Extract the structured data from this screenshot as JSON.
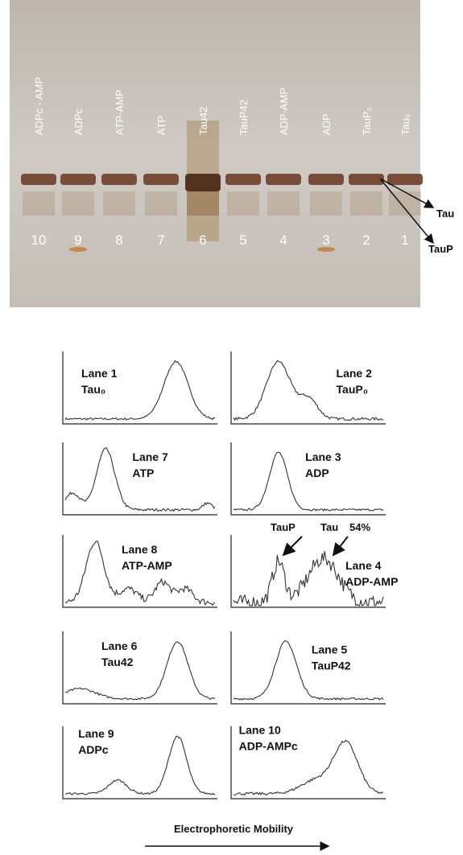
{
  "gel": {
    "lane_labels": [
      "ADPc - AMP",
      "ADPc",
      "ATP-AMP",
      "ATP",
      "Tau42",
      "TauP42",
      "ADP-AMP",
      "ADP",
      "TauP₀",
      "Tau₀"
    ],
    "lane_numbers": [
      "10",
      "9",
      "8",
      "7",
      "6",
      "5",
      "4",
      "3",
      "2",
      "1"
    ],
    "band_labels": [
      "Tau",
      "TauP"
    ]
  },
  "panels": [
    {
      "lane": "Lane 1",
      "sample": "Tau₀"
    },
    {
      "lane": "Lane 2",
      "sample": "TauP₀"
    },
    {
      "lane": "Lane 7",
      "sample": "ATP"
    },
    {
      "lane": "Lane 3",
      "sample": "ADP"
    },
    {
      "lane": "Lane 8",
      "sample": "ATP-AMP"
    },
    {
      "lane": "Lane 4",
      "sample": "ADP-AMP"
    },
    {
      "lane": "Lane 6",
      "sample": "Tau42"
    },
    {
      "lane": "Lane 5",
      "sample": "TauP42"
    },
    {
      "lane": "Lane 9",
      "sample": "ADPc"
    },
    {
      "lane": "Lane 10",
      "sample": "ADP-AMPc"
    }
  ],
  "annotations": {
    "taup": "TauP",
    "tau": "Tau",
    "percent": "54%"
  },
  "x_axis_label": "Electrophoretic Mobility"
}
